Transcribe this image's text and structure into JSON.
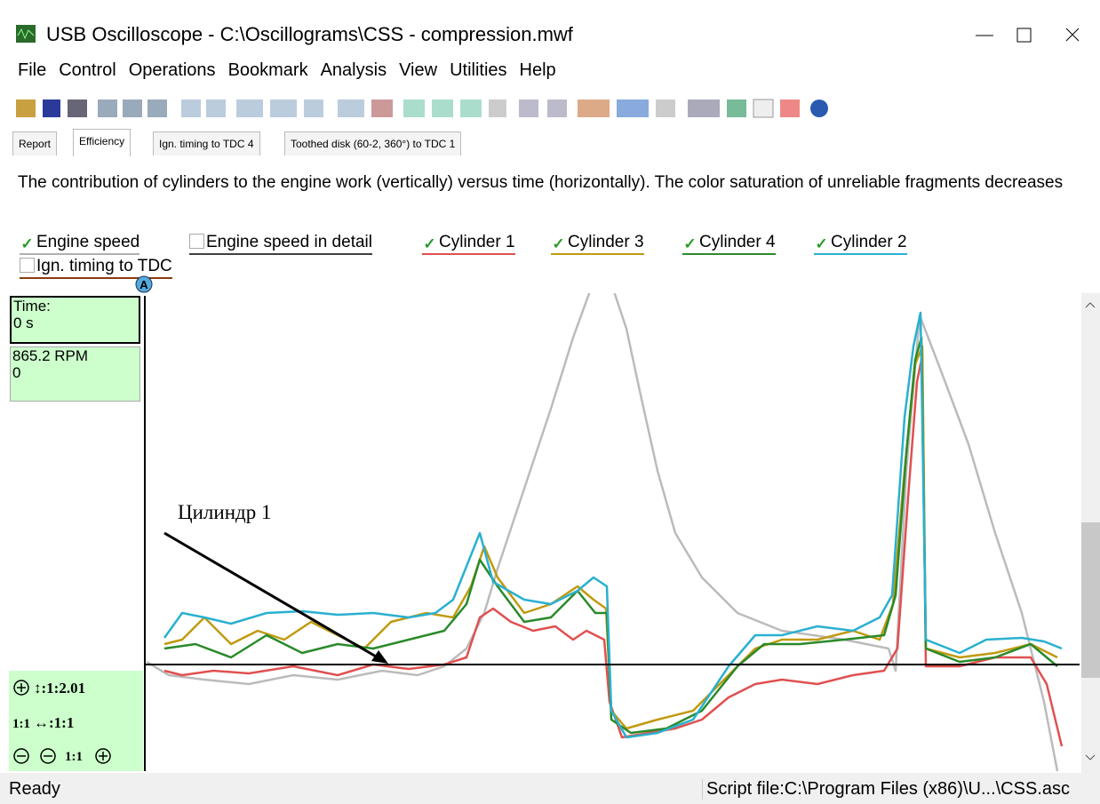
{
  "window": {
    "title": "USB Oscilloscope - C:\\Oscillograms\\CSS - compression.mwf"
  },
  "menu": [
    "File",
    "Control",
    "Operations",
    "Bookmark",
    "Analysis",
    "View",
    "Utilities",
    "Help"
  ],
  "tabs": [
    "Report",
    "Efficiency",
    "Ign. timing to TDC 4",
    "Toothed disk (60-2, 360°) to TDC 1"
  ],
  "description": "The contribution of cylinders to the engine work (vertically) versus time (horizontally). The color saturation of unreliable fragments decreases",
  "legend": [
    {
      "label": "Engine speed",
      "checked": true,
      "color": "#b0b0b0"
    },
    {
      "label": "Engine speed in detail",
      "checked": false,
      "color": "#404040"
    },
    {
      "label": "Cylinder 1",
      "checked": true,
      "color": "#e05050"
    },
    {
      "label": "Cylinder 3",
      "checked": true,
      "color": "#c09a10"
    },
    {
      "label": "Cylinder 4",
      "checked": true,
      "color": "#2a8a2a"
    },
    {
      "label": "Cylinder 2",
      "checked": true,
      "color": "#2ab0d0"
    },
    {
      "label": "Ign. timing to TDC",
      "checked": false,
      "color": "#8b3a10"
    }
  ],
  "marker": "A",
  "readout": {
    "time_label": "Time:",
    "time_value": "0 s",
    "rpm": "865.2 RPM",
    "rpm_value": "0"
  },
  "zoom": {
    "vertical": "↕:1:2.01",
    "reset": "1:1",
    "horizontal": "↔:1:1",
    "reset2": "1:1"
  },
  "annotation": "Цилиндр 1",
  "status": {
    "left": "Ready",
    "right": "Script file:C:\\Program Files (x86)\\U...\\CSS.asc"
  }
}
